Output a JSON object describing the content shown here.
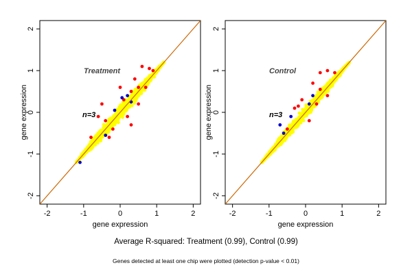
{
  "chart_data": [
    {
      "type": "scatter",
      "title": "Treatment",
      "annotation": "n=3",
      "xlabel": "gene expression",
      "ylabel": "gene expression",
      "xlim": [
        -2.2,
        2.2
      ],
      "ylim": [
        -2.2,
        2.2
      ],
      "xticks": [
        "-2",
        "-1",
        "0",
        "1",
        "2"
      ],
      "yticks": [
        "-2",
        "-1",
        "0",
        "1",
        "2"
      ],
      "grid": false,
      "reference_line": {
        "slope": 1,
        "intercept": 0,
        "color": "#cc6600"
      },
      "series": [
        {
          "color": "#ffff00",
          "cloud": {
            "from": -1.2,
            "to": 1.2,
            "halfwidth_max": 0.22
          }
        },
        {
          "color": "#ff0000",
          "points": [
            [
              0.6,
              1.1
            ],
            [
              0.8,
              1.05
            ],
            [
              0.9,
              1.0
            ],
            [
              0.4,
              0.8
            ],
            [
              0.5,
              0.6
            ],
            [
              0.3,
              0.5
            ],
            [
              0.2,
              -0.1
            ],
            [
              -0.5,
              0.2
            ],
            [
              -0.6,
              -0.1
            ],
            [
              -0.2,
              -0.4
            ],
            [
              0.3,
              -0.3
            ],
            [
              -0.3,
              -0.6
            ],
            [
              -0.8,
              -0.6
            ],
            [
              0.1,
              0.3
            ],
            [
              0.7,
              0.6
            ],
            [
              -0.4,
              -0.2
            ],
            [
              0.0,
              0.6
            ],
            [
              0.5,
              0.2
            ]
          ]
        },
        {
          "color": "#0000cc",
          "points": [
            [
              -1.1,
              -1.2
            ],
            [
              0.05,
              0.35
            ],
            [
              -0.15,
              0.05
            ],
            [
              0.3,
              0.25
            ],
            [
              0.2,
              0.4
            ],
            [
              -0.4,
              -0.55
            ]
          ]
        }
      ]
    },
    {
      "type": "scatter",
      "title": "Control",
      "annotation": "n=3",
      "xlabel": "gene expression",
      "ylabel": "gene expression",
      "xlim": [
        -2.2,
        2.2
      ],
      "ylim": [
        -2.2,
        2.2
      ],
      "xticks": [
        "-2",
        "-1",
        "0",
        "1",
        "2"
      ],
      "yticks": [
        "-2",
        "-1",
        "0",
        "1",
        "2"
      ],
      "grid": false,
      "reference_line": {
        "slope": 1,
        "intercept": 0,
        "color": "#cc6600"
      },
      "series": [
        {
          "color": "#ffff00",
          "cloud": {
            "from": -1.2,
            "to": 1.2,
            "halfwidth_max": 0.18
          }
        },
        {
          "color": "#ff0000",
          "points": [
            [
              0.4,
              0.95
            ],
            [
              0.6,
              1.0
            ],
            [
              0.8,
              0.95
            ],
            [
              0.2,
              0.7
            ],
            [
              -0.1,
              0.3
            ],
            [
              -0.2,
              0.15
            ],
            [
              0.4,
              0.55
            ],
            [
              0.1,
              -0.2
            ],
            [
              -0.5,
              -0.4
            ],
            [
              0.6,
              0.4
            ],
            [
              -0.3,
              0.1
            ],
            [
              0.3,
              0.2
            ]
          ]
        },
        {
          "color": "#0000cc",
          "points": [
            [
              -0.7,
              -0.3
            ],
            [
              -0.4,
              -0.1
            ],
            [
              0.1,
              0.2
            ],
            [
              0.2,
              0.4
            ],
            [
              -0.6,
              -0.5
            ]
          ]
        }
      ]
    }
  ],
  "caption": "Average R-squared: Treatment (0.99), Control (0.99)",
  "footnote": "Genes detected at least one chip were plotted (detection p-value < 0.01)"
}
